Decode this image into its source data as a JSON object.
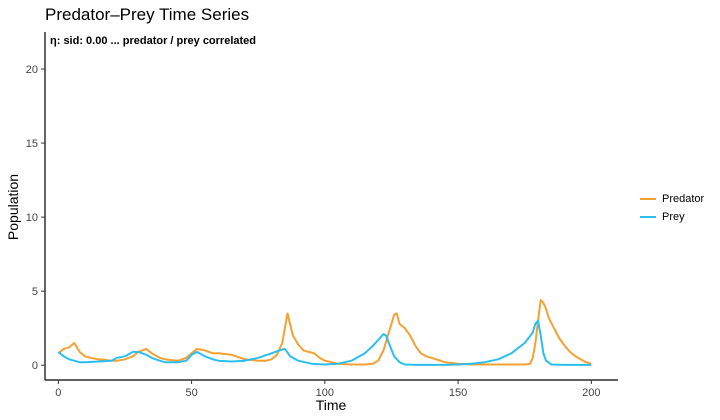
{
  "chart_data": {
    "type": "line",
    "title": "Predator–Prey Time Series",
    "xlabel": "Time",
    "ylabel": "Population",
    "xlim": [
      -5,
      210
    ],
    "ylim": [
      -1,
      22.5
    ],
    "xticks": [
      0,
      50,
      100,
      150,
      200
    ],
    "yticks": [
      0,
      5,
      10,
      15,
      20
    ],
    "grid": false,
    "legend_position": "right",
    "annotation": "η: sid: 0.00 ... predator / prey correlated",
    "series": [
      {
        "name": "Predator",
        "color": "#F5A033",
        "x": [
          0,
          2,
          4,
          6,
          8,
          10,
          12,
          15,
          18,
          20,
          22,
          25,
          28,
          30,
          33,
          35,
          38,
          40,
          42,
          45,
          48,
          50,
          52,
          55,
          58,
          60,
          65,
          70,
          75,
          78,
          80,
          82,
          84,
          86,
          88,
          90,
          92,
          94,
          96,
          98,
          100,
          105,
          110,
          115,
          118,
          120,
          122,
          124,
          126,
          127,
          128,
          130,
          132,
          134,
          136,
          138,
          140,
          145,
          150,
          155,
          160,
          165,
          170,
          175,
          177,
          178,
          179,
          180,
          181,
          182,
          183,
          184,
          186,
          188,
          190,
          192,
          194,
          196,
          198,
          200
        ],
        "values": [
          0.8,
          1.1,
          1.2,
          1.5,
          0.9,
          0.6,
          0.5,
          0.4,
          0.35,
          0.3,
          0.3,
          0.4,
          0.6,
          0.9,
          1.1,
          0.8,
          0.5,
          0.4,
          0.35,
          0.3,
          0.5,
          0.8,
          1.1,
          1.0,
          0.8,
          0.8,
          0.7,
          0.4,
          0.3,
          0.3,
          0.4,
          0.7,
          1.5,
          3.5,
          2.0,
          1.4,
          1.0,
          0.9,
          0.8,
          0.5,
          0.3,
          0.1,
          0.05,
          0.05,
          0.1,
          0.3,
          1.0,
          2.2,
          3.4,
          3.5,
          2.8,
          2.5,
          2.0,
          1.3,
          0.8,
          0.6,
          0.5,
          0.2,
          0.1,
          0.05,
          0.05,
          0.05,
          0.05,
          0.05,
          0.1,
          0.5,
          1.5,
          3.0,
          4.4,
          4.2,
          3.8,
          3.2,
          2.5,
          1.8,
          1.3,
          0.9,
          0.6,
          0.4,
          0.2,
          0.1
        ]
      },
      {
        "name": "Prey",
        "color": "#2BBFEF",
        "x": [
          0,
          2,
          4,
          6,
          8,
          10,
          15,
          20,
          22,
          25,
          28,
          30,
          33,
          35,
          38,
          40,
          45,
          48,
          50,
          52,
          55,
          58,
          60,
          65,
          70,
          75,
          80,
          83,
          85,
          87,
          90,
          95,
          100,
          105,
          110,
          115,
          118,
          120,
          122,
          123,
          124,
          126,
          128,
          130,
          135,
          140,
          145,
          150,
          155,
          160,
          165,
          170,
          175,
          178,
          179,
          180,
          181,
          182,
          183,
          185,
          190,
          195,
          200
        ],
        "values": [
          0.9,
          0.6,
          0.4,
          0.3,
          0.2,
          0.2,
          0.25,
          0.3,
          0.5,
          0.6,
          0.9,
          0.9,
          0.7,
          0.5,
          0.3,
          0.2,
          0.2,
          0.3,
          0.7,
          0.9,
          0.6,
          0.4,
          0.3,
          0.25,
          0.3,
          0.5,
          0.8,
          1.0,
          1.1,
          0.6,
          0.3,
          0.1,
          0.05,
          0.1,
          0.3,
          0.8,
          1.3,
          1.7,
          2.1,
          2.0,
          1.5,
          0.6,
          0.2,
          0.05,
          0.02,
          0.02,
          0.02,
          0.05,
          0.1,
          0.2,
          0.4,
          0.8,
          1.5,
          2.2,
          2.8,
          3.0,
          2.0,
          0.8,
          0.3,
          0.05,
          0.02,
          0.02,
          0.02
        ]
      }
    ]
  }
}
